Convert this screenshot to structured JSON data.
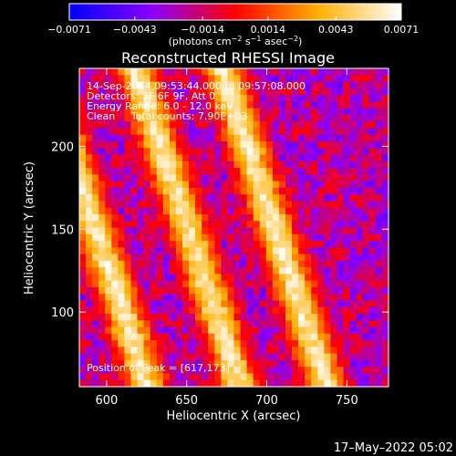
{
  "chart_data": {
    "type": "heatmap",
    "title": "Reconstructed RHESSI Image",
    "xlabel": "Heliocentric X (arcsec)",
    "ylabel": "Heliocentric Y (arcsec)",
    "xlim": [
      583,
      776
    ],
    "ylim": [
      55,
      247
    ],
    "x_ticks": [
      {
        "value": 600,
        "label": "600"
      },
      {
        "value": 650,
        "label": "650"
      },
      {
        "value": 700,
        "label": "700"
      },
      {
        "value": 750,
        "label": "750"
      }
    ],
    "y_ticks": [
      {
        "value": 100,
        "label": "100"
      },
      {
        "value": 150,
        "label": "150"
      },
      {
        "value": 200,
        "label": "200"
      }
    ],
    "colorbar": {
      "min": -0.0071,
      "max": 0.0071,
      "ticks": [
        {
          "value": -0.0071,
          "label": "−0.0071"
        },
        {
          "value": -0.0043,
          "label": "−0.0043"
        },
        {
          "value": -0.0014,
          "label": "−0.0014"
        },
        {
          "value": 0.0014,
          "label": "0.0014"
        },
        {
          "value": 0.0043,
          "label": "0.0043"
        },
        {
          "value": 0.0071,
          "label": "0.0071"
        }
      ],
      "colors": [
        "#0000ff",
        "#8a00ff",
        "#ff0000",
        "#ffb000",
        "#ffffff"
      ]
    },
    "info_lines": [
      "14-Sep-2014 09:53:44.000 to 09:57:08.000",
      "Detectors: 3F 6F 9F, Att 0",
      "Energy Range: 6.0 - 12.0 keV",
      "Clean     Total counts: 7.90E+03"
    ],
    "peak_label": "Position of Peak = [617,173]",
    "peak": [
      617,
      173
    ],
    "grid": false
  },
  "colorbar_unit_parts": [
    "(photons cm",
    "−2",
    " s",
    "−1",
    " asec",
    "−2",
    ")"
  ],
  "timestamp": "17–May–2022 05:02"
}
